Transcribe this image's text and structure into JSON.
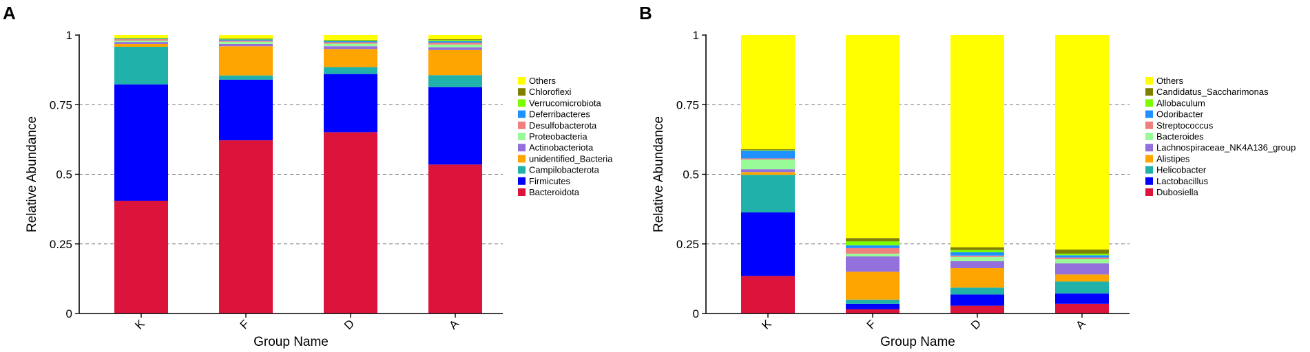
{
  "chart_data": [
    {
      "panel_label": "A",
      "type": "stacked-bar",
      "xlabel": "Group Name",
      "ylabel": "Relative Abundance",
      "ylim": [
        0,
        1
      ],
      "yticks": [
        "0",
        "0.25",
        "0.5",
        "0.75",
        "1"
      ],
      "categories": [
        "K",
        "F",
        "D",
        "A"
      ],
      "legend_position": "right",
      "series": [
        {
          "name": "Bacteroidota",
          "color": "#dc143c",
          "values": [
            0.405,
            0.622,
            0.651,
            0.535
          ]
        },
        {
          "name": "Firmicutes",
          "color": "#0000ff",
          "values": [
            0.418,
            0.218,
            0.209,
            0.278
          ]
        },
        {
          "name": "Campilobacterota",
          "color": "#20b2aa",
          "values": [
            0.135,
            0.015,
            0.025,
            0.043
          ]
        },
        {
          "name": "unidentified_Bacteria",
          "color": "#ffa500",
          "values": [
            0.01,
            0.105,
            0.065,
            0.09
          ]
        },
        {
          "name": "Actinobacteriota",
          "color": "#9370db",
          "values": [
            0.007,
            0.008,
            0.01,
            0.01
          ]
        },
        {
          "name": "Proteobacteria",
          "color": "#98fb98",
          "values": [
            0.005,
            0.008,
            0.009,
            0.01
          ]
        },
        {
          "name": "Desulfobacterota",
          "color": "#f08080",
          "values": [
            0.005,
            0.004,
            0.005,
            0.007
          ]
        },
        {
          "name": "Deferribacteres",
          "color": "#1e90ff",
          "values": [
            0.002,
            0.004,
            0.004,
            0.005
          ]
        },
        {
          "name": "Verrucomicrobiota",
          "color": "#7cfc00",
          "values": [
            0.002,
            0.002,
            0.003,
            0.004
          ]
        },
        {
          "name": "Chloroflexi",
          "color": "#808000",
          "values": [
            0.001,
            0.002,
            0.002,
            0.003
          ]
        },
        {
          "name": "Others",
          "color": "#ffff00",
          "values": [
            0.01,
            0.012,
            0.017,
            0.015
          ]
        }
      ]
    },
    {
      "panel_label": "B",
      "type": "stacked-bar",
      "xlabel": "Group Name",
      "ylabel": "Relative Abundance",
      "ylim": [
        0,
        1
      ],
      "yticks": [
        "0",
        "0.25",
        "0.5",
        "0.75",
        "1"
      ],
      "categories": [
        "K",
        "F",
        "D",
        "A"
      ],
      "legend_position": "right",
      "series": [
        {
          "name": "Dubosiella",
          "color": "#dc143c",
          "values": [
            0.135,
            0.015,
            0.028,
            0.035
          ]
        },
        {
          "name": "Lactobacillus",
          "color": "#0000ff",
          "values": [
            0.228,
            0.02,
            0.04,
            0.037
          ]
        },
        {
          "name": "Helicobacter",
          "color": "#20b2aa",
          "values": [
            0.135,
            0.015,
            0.025,
            0.043
          ]
        },
        {
          "name": "Alistipes",
          "color": "#ffa500",
          "values": [
            0.01,
            0.1,
            0.07,
            0.025
          ]
        },
        {
          "name": "Lachnospiraceae_NK4A136_group",
          "color": "#9370db",
          "values": [
            0.01,
            0.055,
            0.025,
            0.04
          ]
        },
        {
          "name": "Bacteroides",
          "color": "#98fb98",
          "values": [
            0.035,
            0.01,
            0.015,
            0.015
          ]
        },
        {
          "name": "Streptococcus",
          "color": "#f08080",
          "values": [
            0.004,
            0.02,
            0.005,
            0.006
          ]
        },
        {
          "name": "Odoribacter",
          "color": "#1e90ff",
          "values": [
            0.028,
            0.01,
            0.012,
            0.008
          ]
        },
        {
          "name": "Allobaculum",
          "color": "#7cfc00",
          "values": [
            0.002,
            0.014,
            0.008,
            0.006
          ]
        },
        {
          "name": "Candidatus_Saccharimonas",
          "color": "#808000",
          "values": [
            0.003,
            0.012,
            0.01,
            0.015
          ]
        },
        {
          "name": "Others",
          "color": "#ffff00",
          "values": [
            0.41,
            0.729,
            0.762,
            0.77
          ]
        }
      ]
    }
  ]
}
